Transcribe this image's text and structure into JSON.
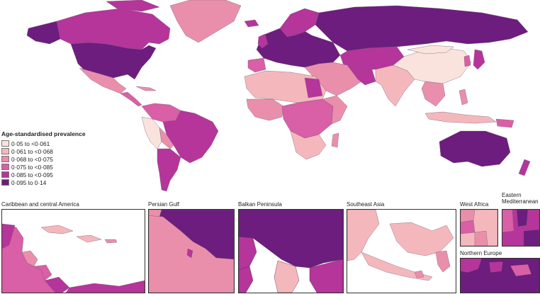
{
  "legend": {
    "title": "Age-standardised prevalence",
    "items": [
      {
        "label": "0·05 to <0·061",
        "color": "#fbe3dd"
      },
      {
        "label": "0·061 to <0·068",
        "color": "#f4b8bc"
      },
      {
        "label": "0·068 to <0·075",
        "color": "#ea8fab"
      },
      {
        "label": "0·075 to <0·085",
        "color": "#d95fa6"
      },
      {
        "label": "0·085 to <0·095",
        "color": "#b5359a"
      },
      {
        "label": "0·095 to 0·14",
        "color": "#6c1d7e"
      }
    ]
  },
  "insets": {
    "caribbean": "Caribbean and central America",
    "persian_gulf": "Persian Gulf",
    "balkan": "Balkan Peninsula",
    "southeast_asia": "Southeast Asia",
    "west_africa": "West Africa",
    "eastern_med": "Eastern Mediterranean",
    "northern_europe": "Northern Europe"
  }
}
